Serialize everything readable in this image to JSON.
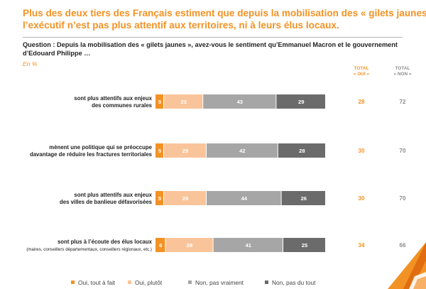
{
  "title": {
    "line1": "Plus des deux tiers des Français estiment que depuis la mobilisation des « gilets jaunes »,",
    "line2": "l’exécutif n’est pas plus attentif aux territoires, ni à leurs élus locaux."
  },
  "question": {
    "line1": "Question : Depuis la mobilisation des « gilets jaunes », avez-vous le sentiment qu’Emmanuel Macron et le gouvernement",
    "line2": "d’Edouard Philippe …"
  },
  "unit": "En %",
  "totals_header": {
    "oui": [
      "TOTAL",
      "« OUI »"
    ],
    "non": [
      "TOTAL",
      "« NON »"
    ]
  },
  "colors": {
    "title": "#f39224",
    "oui_tout_a_fait": "#f39224",
    "oui_plutot": "#f9c49a",
    "non_pas_vraiment": "#a6a6a6",
    "non_pas_du_tout": "#6b6b6b",
    "total_oui": "#f39224",
    "total_non": "#8c8c8c"
  },
  "chart_data": {
    "type": "bar",
    "orientation": "horizontal",
    "stacked": true,
    "unit": "%",
    "xlim": [
      0,
      100
    ],
    "categories": [
      [
        "sont plus attentifs aux enjeux",
        "des communes rurales"
      ],
      [
        "mènent une politique qui se préoccupe",
        "davantage de réduire les fractures territoriales"
      ],
      [
        "sont plus attentifs aux enjeux",
        "des villes de banlieue défavorisées"
      ],
      [
        "sont plus à l’écoute des élus locaux",
        "(maires, conseillers départementaux, conseillers régionaux, etc.)"
      ]
    ],
    "series": [
      {
        "name": "Oui, tout à fait",
        "values": [
          5,
          5,
          5,
          6
        ]
      },
      {
        "name": "Oui, plutôt",
        "values": [
          23,
          25,
          25,
          28
        ]
      },
      {
        "name": "Non, pas vraiment",
        "values": [
          43,
          42,
          44,
          41
        ]
      },
      {
        "name": "Non, pas du tout",
        "values": [
          29,
          28,
          26,
          25
        ]
      }
    ],
    "totals": {
      "oui": [
        28,
        30,
        30,
        34
      ],
      "non": [
        72,
        70,
        70,
        66
      ]
    },
    "legend": [
      "Oui, tout à fait",
      "Oui, plutôt",
      "Non, pas vraiment",
      "Non, pas du tout"
    ]
  }
}
